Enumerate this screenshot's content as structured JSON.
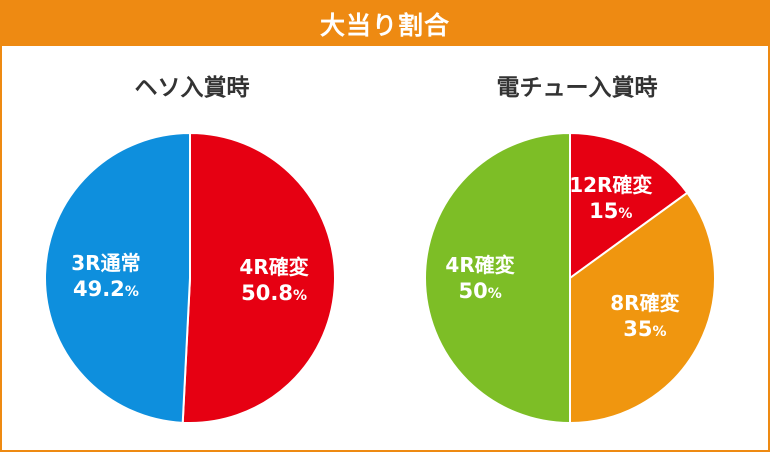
{
  "header": {
    "title": "大当り割合"
  },
  "colors": {
    "header_bg": "#ee8a12",
    "blue": "#0e8fdd",
    "red": "#e60012",
    "green": "#7dbe26",
    "orange": "#f0960f"
  },
  "chart_data": [
    {
      "type": "pie",
      "title": "ヘソ入賞時",
      "slices": [
        {
          "label": "4R確変",
          "value": 50.8,
          "value_label": "50.8",
          "unit": "%",
          "color": "#e60012"
        },
        {
          "label": "3R通常",
          "value": 49.2,
          "value_label": "49.2",
          "unit": "%",
          "color": "#0e8fdd"
        }
      ]
    },
    {
      "type": "pie",
      "title": "電チュー入賞時",
      "slices": [
        {
          "label": "12R確変",
          "value": 15,
          "value_label": "15",
          "unit": "%",
          "color": "#e60012"
        },
        {
          "label": "8R確変",
          "value": 35,
          "value_label": "35",
          "unit": "%",
          "color": "#f0960f"
        },
        {
          "label": "4R確変",
          "value": 50,
          "value_label": "50",
          "unit": "%",
          "color": "#7dbe26"
        }
      ]
    }
  ]
}
